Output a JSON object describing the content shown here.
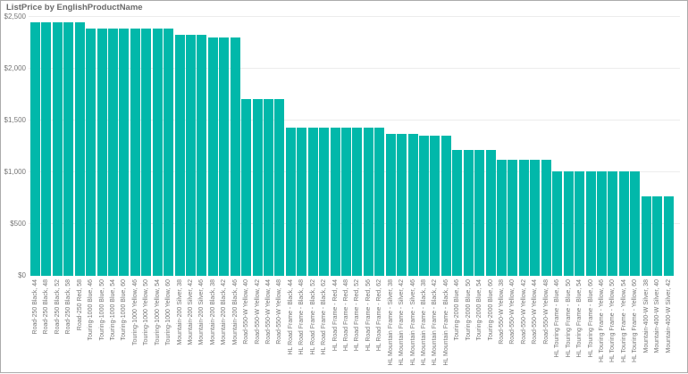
{
  "colors": {
    "bar": "#01B8AA",
    "gridline": "#ECECEC",
    "axis_text": "#777777",
    "title_text": "#6A6A6A",
    "border": "#ABABAB",
    "background": "#FFFFFF"
  },
  "chart_data": {
    "type": "bar",
    "title": "ListPrice by EnglishProductName",
    "xlabel": "EnglishProductName",
    "ylabel": "ListPrice",
    "ylim": [
      0,
      2500
    ],
    "grid": "horizontal",
    "legend_position": "none",
    "bar_color": "#01B8AA",
    "y_ticks": [
      "$0",
      "$500",
      "$1,000",
      "$1,500",
      "$2,000",
      "$2,500"
    ],
    "y_tick_values": [
      0,
      500,
      1000,
      1500,
      2000,
      2500
    ],
    "categories": [
      "Road-250 Black, 44",
      "Road-250 Black, 48",
      "Road-250 Black, 52",
      "Road-250 Black, 58",
      "Road-250 Red, 58",
      "Touring-1000 Blue, 46",
      "Touring-1000 Blue, 50",
      "Touring-1000 Blue, 54",
      "Touring-1000 Blue, 60",
      "Touring-1000 Yellow, 46",
      "Touring-1000 Yellow, 50",
      "Touring-1000 Yellow, 54",
      "Touring-1000 Yellow, 60",
      "Mountain-200 Silver, 38",
      "Mountain-200 Silver, 42",
      "Mountain-200 Silver, 46",
      "Mountain-200 Black, 38",
      "Mountain-200 Black, 42",
      "Mountain-200 Black, 46",
      "Road-550-W Yellow, 40",
      "Road-550-W Yellow, 42",
      "Road-550-W Yellow, 44",
      "Road-550-W Yellow, 48",
      "HL Road Frame - Black, 44",
      "HL Road Frame - Black, 48",
      "HL Road Frame - Black, 52",
      "HL Road Frame - Black, 62",
      "HL Road Frame - Red, 44",
      "HL Road Frame - Red, 48",
      "HL Road Frame - Red, 52",
      "HL Road Frame - Red, 56",
      "HL Road Frame - Red, 62",
      "HL Mountain Frame - Silver, 38",
      "HL Mountain Frame - Silver, 42",
      "HL Mountain Frame - Silver, 46",
      "HL Mountain Frame - Black, 38",
      "HL Mountain Frame - Black, 42",
      "HL Mountain Frame - Black, 46",
      "Touring-2000 Blue, 46",
      "Touring-2000 Blue, 50",
      "Touring-2000 Blue, 54",
      "Touring-2000 Blue, 60",
      "Road-550-W Yellow, 38",
      "Road-550-W Yellow, 40",
      "Road-550-W Yellow, 42",
      "Road-550-W Yellow, 44",
      "Road-550-W Yellow, 48",
      "HL Touring Frame - Blue, 46",
      "HL Touring Frame - Blue, 50",
      "HL Touring Frame - Blue, 54",
      "HL Touring Frame - Blue, 60",
      "HL Touring Frame - Yellow, 46",
      "HL Touring Frame - Yellow, 50",
      "HL Touring Frame - Yellow, 54",
      "HL Touring Frame - Yellow, 60",
      "Mountain-400-W Silver, 38",
      "Mountain-400-W Silver, 40",
      "Mountain-400-W Silver, 42"
    ],
    "values": [
      2439.99,
      2439.99,
      2439.99,
      2439.99,
      2443.35,
      2384.07,
      2384.07,
      2384.07,
      2384.07,
      2384.07,
      2384.07,
      2384.07,
      2384.07,
      2319.99,
      2319.99,
      2319.99,
      2294.99,
      2294.99,
      2294.99,
      1700.99,
      1700.99,
      1700.99,
      1700.99,
      1431.5,
      1431.5,
      1431.5,
      1431.5,
      1431.5,
      1431.5,
      1431.5,
      1431.5,
      1431.5,
      1364.5,
      1364.5,
      1364.5,
      1349.6,
      1349.6,
      1349.6,
      1214.85,
      1214.85,
      1214.85,
      1214.85,
      1120.49,
      1120.49,
      1120.49,
      1120.49,
      1120.49,
      1003.91,
      1003.91,
      1003.91,
      1003.91,
      1003.91,
      1003.91,
      1003.91,
      1003.91,
      769.49,
      769.49,
      769.49
    ]
  }
}
